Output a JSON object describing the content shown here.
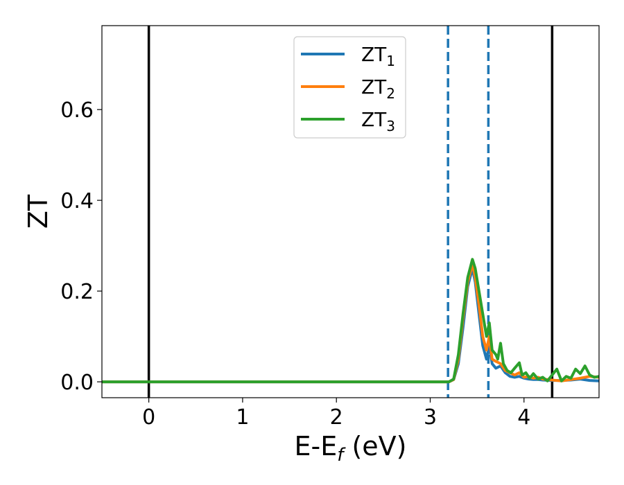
{
  "chart_data": {
    "type": "line",
    "xlabel_main": "E-E",
    "xlabel_sub": "f",
    "xlabel_unit": " (eV)",
    "ylabel": "ZT",
    "xlim": [
      -0.5,
      4.8
    ],
    "ylim": [
      -0.035,
      0.785
    ],
    "xticks": [
      0,
      1,
      2,
      3,
      4
    ],
    "xtick_labels": [
      "0",
      "1",
      "2",
      "3",
      "4"
    ],
    "yticks": [
      0.0,
      0.2,
      0.4,
      0.6
    ],
    "ytick_labels": [
      "0.0",
      "0.2",
      "0.4",
      "0.6"
    ],
    "legend_position": "top-center",
    "grid": false,
    "vlines": [
      {
        "x": 0.0,
        "style": "solid",
        "color": "#000000"
      },
      {
        "x": 4.3,
        "style": "solid",
        "color": "#000000"
      },
      {
        "x": 3.19,
        "style": "dashed",
        "color": "#1f77b4"
      },
      {
        "x": 3.62,
        "style": "dashed",
        "color": "#1f77b4"
      }
    ],
    "series": [
      {
        "name_main": "ZT",
        "name_sub": "1",
        "color": "#1f77b4",
        "x": [
          -0.5,
          3.0,
          3.2,
          3.25,
          3.3,
          3.35,
          3.4,
          3.45,
          3.48,
          3.52,
          3.56,
          3.6,
          3.63,
          3.66,
          3.7,
          3.75,
          3.8,
          3.85,
          3.9,
          3.95,
          4.0,
          4.05,
          4.1,
          4.15,
          4.2,
          4.3,
          4.4,
          4.5,
          4.6,
          4.7,
          4.8
        ],
        "y": [
          0.0,
          0.0,
          0.0,
          0.005,
          0.04,
          0.12,
          0.21,
          0.25,
          0.22,
          0.15,
          0.08,
          0.05,
          0.08,
          0.04,
          0.03,
          0.035,
          0.02,
          0.012,
          0.01,
          0.012,
          0.008,
          0.006,
          0.005,
          0.005,
          0.004,
          0.003,
          0.003,
          0.004,
          0.006,
          0.003,
          0.002
        ]
      },
      {
        "name_main": "ZT",
        "name_sub": "2",
        "color": "#ff7f0e",
        "x": [
          -0.5,
          3.0,
          3.2,
          3.25,
          3.3,
          3.35,
          3.4,
          3.45,
          3.48,
          3.52,
          3.56,
          3.6,
          3.63,
          3.66,
          3.7,
          3.75,
          3.8,
          3.85,
          3.9,
          3.95,
          4.0,
          4.05,
          4.1,
          4.15,
          4.2,
          4.3,
          4.4,
          4.5,
          4.6,
          4.7,
          4.8
        ],
        "y": [
          0.0,
          0.0,
          0.0,
          0.005,
          0.05,
          0.14,
          0.22,
          0.26,
          0.23,
          0.17,
          0.1,
          0.07,
          0.1,
          0.05,
          0.045,
          0.04,
          0.025,
          0.02,
          0.015,
          0.02,
          0.01,
          0.012,
          0.008,
          0.01,
          0.006,
          0.004,
          0.002,
          0.005,
          0.008,
          0.012,
          0.01
        ]
      },
      {
        "name_main": "ZT",
        "name_sub": "3",
        "color": "#2ca02c",
        "x": [
          -0.5,
          3.0,
          3.2,
          3.25,
          3.3,
          3.35,
          3.4,
          3.45,
          3.48,
          3.52,
          3.56,
          3.6,
          3.63,
          3.66,
          3.7,
          3.72,
          3.75,
          3.78,
          3.82,
          3.86,
          3.9,
          3.95,
          3.98,
          4.02,
          4.06,
          4.1,
          4.15,
          4.2,
          4.25,
          4.3,
          4.35,
          4.4,
          4.45,
          4.5,
          4.55,
          4.6,
          4.65,
          4.7,
          4.75,
          4.8
        ],
        "y": [
          0.0,
          0.0,
          0.0,
          0.006,
          0.06,
          0.15,
          0.23,
          0.27,
          0.25,
          0.2,
          0.15,
          0.1,
          0.13,
          0.07,
          0.06,
          0.05,
          0.085,
          0.04,
          0.025,
          0.02,
          0.03,
          0.042,
          0.015,
          0.02,
          0.008,
          0.018,
          0.006,
          0.01,
          0.002,
          0.015,
          0.028,
          0.002,
          0.012,
          0.008,
          0.028,
          0.018,
          0.035,
          0.015,
          0.01,
          0.012
        ]
      }
    ]
  }
}
